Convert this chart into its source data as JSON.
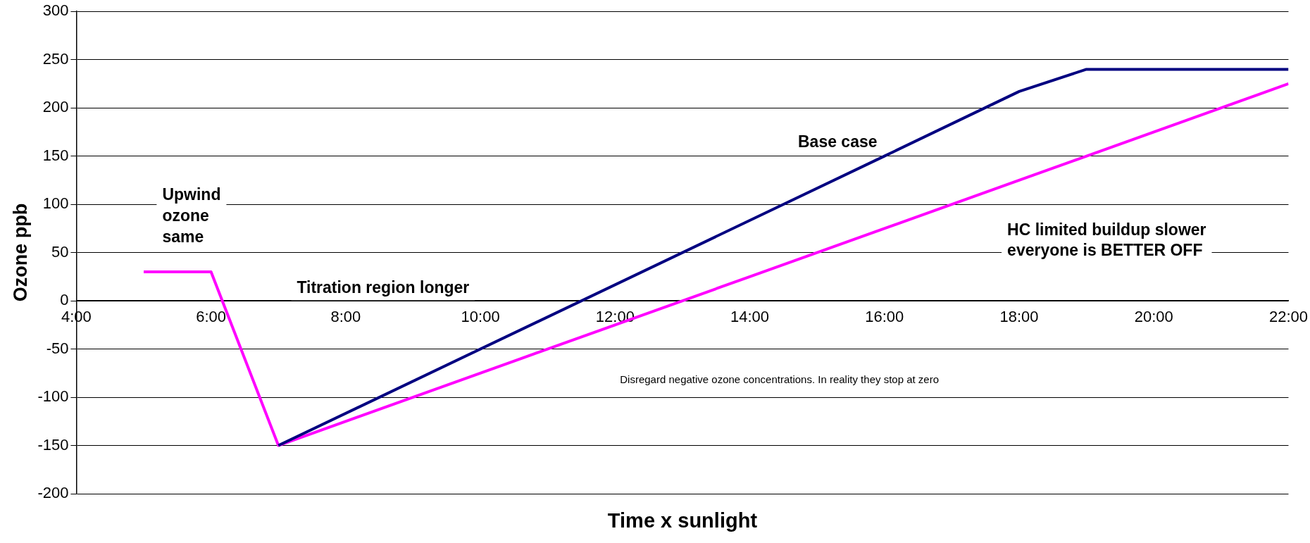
{
  "chart_data": {
    "type": "line",
    "xlabel": "Time x sunlight",
    "ylabel": "Ozone ppb",
    "xlim": [
      4,
      22
    ],
    "xticks": [
      {
        "value": 4,
        "label": "4:00"
      },
      {
        "value": 6,
        "label": "6:00"
      },
      {
        "value": 8,
        "label": "8:00"
      },
      {
        "value": 10,
        "label": "10:00"
      },
      {
        "value": 12,
        "label": "12:00"
      },
      {
        "value": 14,
        "label": "14:00"
      },
      {
        "value": 16,
        "label": "16:00"
      },
      {
        "value": 18,
        "label": "18:00"
      },
      {
        "value": 20,
        "label": "20:00"
      },
      {
        "value": 22,
        "label": "22:00"
      }
    ],
    "ylim": [
      -200,
      300
    ],
    "yticks": [
      -200,
      -150,
      -100,
      -50,
      0,
      50,
      100,
      150,
      200,
      250,
      300
    ],
    "grid": "y",
    "legend": false,
    "marker": "none",
    "line_style": "solid",
    "series": [
      {
        "color": "#000080",
        "x": [
          7,
          16,
          18,
          19,
          22
        ],
        "values": [
          -150,
          150,
          217,
          240,
          240
        ]
      },
      {
        "color": "#ff00ff",
        "x": [
          5,
          6,
          7,
          12,
          14,
          16,
          22
        ],
        "values": [
          30,
          30,
          -150,
          -25,
          25,
          75,
          225
        ]
      }
    ],
    "annotations": [
      "Upwind\nozone\nsame",
      "Titration region longer",
      "Base case",
      "HC limited buildup slower\neveryone is BETTER OFF",
      "Disregard negative ozone concentrations. In reality they stop at zero"
    ]
  }
}
